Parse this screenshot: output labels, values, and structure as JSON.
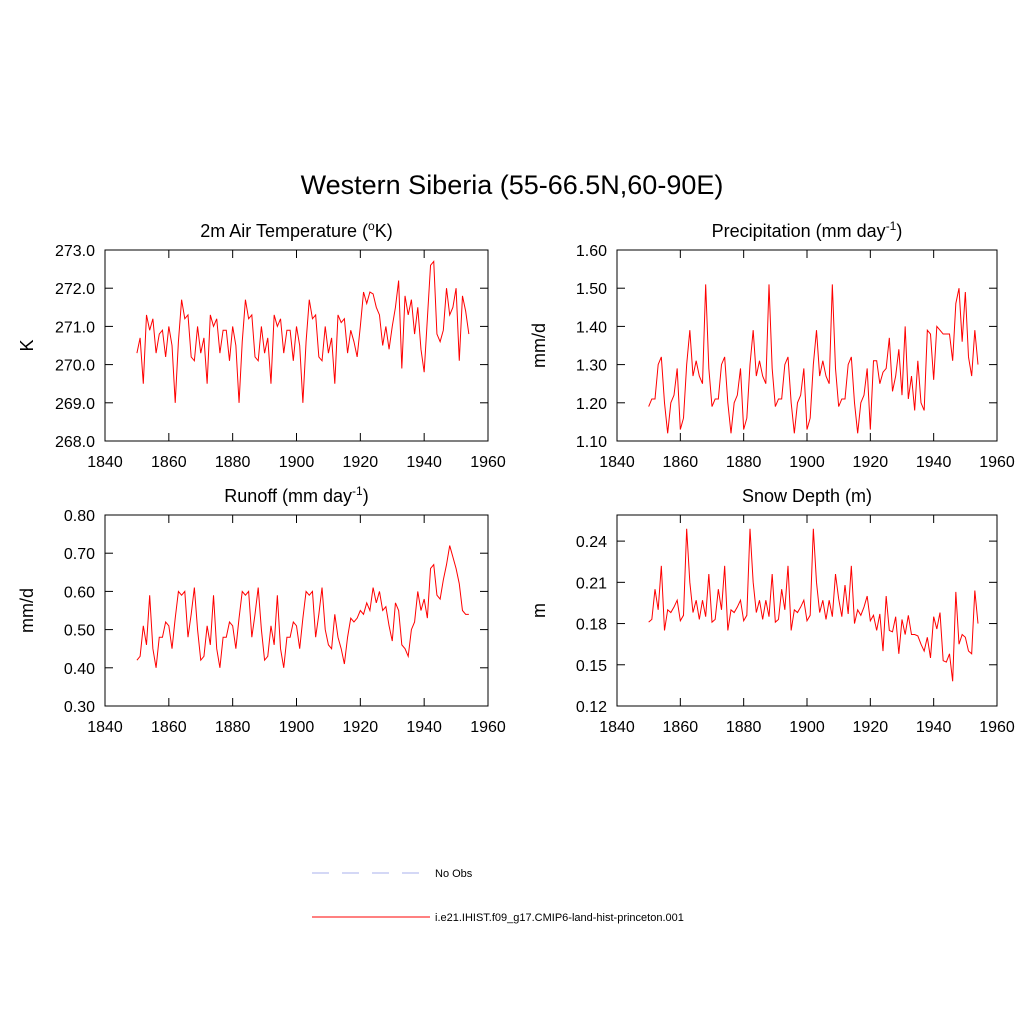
{
  "title": "Western Siberia (55-66.5N,60-90E)",
  "legend": [
    {
      "name": "No Obs",
      "color": "#aab0ee",
      "dash": true
    },
    {
      "name": "i.e21.IHIST.f09_g17.CMIP6-land-hist-princeton.001",
      "color": "#ff0000",
      "dash": false
    }
  ],
  "chart_data": [
    {
      "type": "line",
      "title": [
        {
          "text": "2m Air Temperature ("
        },
        {
          "text": "o",
          "sup": true
        },
        {
          "text": "K)"
        }
      ],
      "y_label": "K",
      "color": "#ff0000",
      "xlim": [
        1840,
        1960
      ],
      "xticks": [
        1840,
        1860,
        1880,
        1900,
        1920,
        1940,
        1960
      ],
      "ylim": [
        268,
        273
      ],
      "yticks": [
        {
          "value": 268,
          "label": "268.0"
        },
        {
          "value": 269,
          "label": "269.0"
        },
        {
          "value": 270,
          "label": "270.0"
        },
        {
          "value": 271,
          "label": "271.0"
        },
        {
          "value": 272,
          "label": "272.0"
        },
        {
          "value": 273,
          "label": "273.0"
        }
      ],
      "x": [
        1850,
        1851,
        1852,
        1853,
        1854,
        1855,
        1856,
        1857,
        1858,
        1859,
        1860,
        1861,
        1862,
        1863,
        1864,
        1865,
        1866,
        1867,
        1868,
        1869,
        1870,
        1871,
        1872,
        1873,
        1874,
        1875,
        1876,
        1877,
        1878,
        1879,
        1880,
        1881,
        1882,
        1883,
        1884,
        1885,
        1886,
        1887,
        1888,
        1889,
        1890,
        1891,
        1892,
        1893,
        1894,
        1895,
        1896,
        1897,
        1898,
        1899,
        1900,
        1901,
        1902,
        1903,
        1904,
        1905,
        1906,
        1907,
        1908,
        1909,
        1910,
        1911,
        1912,
        1913,
        1914,
        1915,
        1916,
        1917,
        1918,
        1919,
        1920,
        1921,
        1922,
        1923,
        1924,
        1925,
        1926,
        1927,
        1928,
        1929,
        1930,
        1931,
        1932,
        1933,
        1934,
        1935,
        1936,
        1937,
        1938,
        1939,
        1940,
        1941,
        1942,
        1943,
        1944,
        1945,
        1946,
        1947,
        1948,
        1949,
        1950,
        1951,
        1952,
        1953,
        1954
      ],
      "values": [
        270.3,
        270.7,
        269.5,
        271.3,
        270.9,
        271.2,
        270.3,
        270.8,
        270.9,
        270.2,
        271.0,
        270.5,
        269.0,
        270.6,
        271.7,
        271.2,
        271.3,
        270.2,
        270.1,
        271.0,
        270.3,
        270.7,
        269.5,
        271.3,
        271.0,
        271.2,
        270.3,
        270.9,
        270.9,
        270.1,
        271.0,
        270.5,
        269.0,
        270.6,
        271.7,
        271.2,
        271.3,
        270.2,
        270.1,
        271.0,
        270.3,
        270.7,
        269.5,
        271.3,
        271.0,
        271.2,
        270.3,
        270.9,
        270.9,
        270.1,
        271.0,
        270.5,
        269.0,
        270.6,
        271.7,
        271.2,
        271.3,
        270.2,
        270.1,
        271.0,
        270.3,
        270.7,
        269.5,
        271.3,
        271.1,
        271.2,
        270.3,
        270.9,
        270.6,
        270.2,
        271.0,
        271.9,
        271.6,
        271.9,
        271.85,
        271.5,
        271.3,
        270.5,
        271.0,
        270.4,
        271.0,
        271.5,
        272.2,
        269.9,
        271.8,
        271.3,
        271.7,
        270.8,
        271.5,
        270.4,
        269.8,
        271.2,
        272.6,
        272.7,
        270.8,
        270.6,
        270.9,
        272.0,
        271.3,
        271.5,
        272.0,
        270.1,
        271.8,
        271.4,
        270.8
      ]
    },
    {
      "type": "line",
      "title": [
        {
          "text": "Precipitation (mm day"
        },
        {
          "text": "-1",
          "sup": true
        },
        {
          "text": ")"
        }
      ],
      "y_label": "mm/d",
      "color": "#ff0000",
      "xlim": [
        1840,
        1960
      ],
      "xticks": [
        1840,
        1860,
        1880,
        1900,
        1920,
        1940,
        1960
      ],
      "ylim": [
        1.1,
        1.6
      ],
      "yticks": [
        {
          "value": 1.1,
          "label": "1.10"
        },
        {
          "value": 1.2,
          "label": "1.20"
        },
        {
          "value": 1.3,
          "label": "1.30"
        },
        {
          "value": 1.4,
          "label": "1.40"
        },
        {
          "value": 1.5,
          "label": "1.50"
        },
        {
          "value": 1.6,
          "label": "1.60"
        }
      ],
      "x": [
        1850,
        1851,
        1852,
        1853,
        1854,
        1855,
        1856,
        1857,
        1858,
        1859,
        1860,
        1861,
        1862,
        1863,
        1864,
        1865,
        1866,
        1867,
        1868,
        1869,
        1870,
        1871,
        1872,
        1873,
        1874,
        1875,
        1876,
        1877,
        1878,
        1879,
        1880,
        1881,
        1882,
        1883,
        1884,
        1885,
        1886,
        1887,
        1888,
        1889,
        1890,
        1891,
        1892,
        1893,
        1894,
        1895,
        1896,
        1897,
        1898,
        1899,
        1900,
        1901,
        1902,
        1903,
        1904,
        1905,
        1906,
        1907,
        1908,
        1909,
        1910,
        1911,
        1912,
        1913,
        1914,
        1915,
        1916,
        1917,
        1918,
        1919,
        1920,
        1921,
        1922,
        1923,
        1924,
        1925,
        1926,
        1927,
        1928,
        1929,
        1930,
        1931,
        1932,
        1933,
        1934,
        1935,
        1936,
        1937,
        1938,
        1939,
        1940,
        1941,
        1942,
        1943,
        1944,
        1945,
        1946,
        1947,
        1948,
        1949,
        1950,
        1951,
        1952,
        1953,
        1954
      ],
      "values": [
        1.19,
        1.21,
        1.21,
        1.3,
        1.32,
        1.2,
        1.12,
        1.2,
        1.22,
        1.29,
        1.13,
        1.16,
        1.3,
        1.39,
        1.27,
        1.31,
        1.27,
        1.25,
        1.51,
        1.29,
        1.19,
        1.21,
        1.21,
        1.3,
        1.32,
        1.2,
        1.12,
        1.2,
        1.22,
        1.29,
        1.13,
        1.16,
        1.3,
        1.39,
        1.27,
        1.31,
        1.27,
        1.25,
        1.51,
        1.29,
        1.19,
        1.21,
        1.21,
        1.3,
        1.32,
        1.2,
        1.12,
        1.2,
        1.22,
        1.29,
        1.13,
        1.16,
        1.3,
        1.39,
        1.27,
        1.31,
        1.27,
        1.25,
        1.51,
        1.29,
        1.19,
        1.21,
        1.21,
        1.3,
        1.32,
        1.2,
        1.12,
        1.2,
        1.22,
        1.29,
        1.13,
        1.31,
        1.31,
        1.25,
        1.28,
        1.29,
        1.37,
        1.23,
        1.27,
        1.34,
        1.22,
        1.4,
        1.21,
        1.27,
        1.18,
        1.31,
        1.2,
        1.18,
        1.39,
        1.38,
        1.26,
        1.4,
        1.39,
        1.38,
        1.38,
        1.38,
        1.31,
        1.46,
        1.5,
        1.36,
        1.49,
        1.32,
        1.27,
        1.39,
        1.3
      ]
    },
    {
      "type": "line",
      "title": [
        {
          "text": "Runoff (mm day"
        },
        {
          "text": "-1",
          "sup": true
        },
        {
          "text": ")"
        }
      ],
      "y_label": "mm/d",
      "color": "#ff0000",
      "xlim": [
        1840,
        1960
      ],
      "xticks": [
        1840,
        1860,
        1880,
        1900,
        1920,
        1940,
        1960
      ],
      "ylim": [
        0.3,
        0.8
      ],
      "yticks": [
        {
          "value": 0.3,
          "label": "0.30"
        },
        {
          "value": 0.4,
          "label": "0.40"
        },
        {
          "value": 0.5,
          "label": "0.50"
        },
        {
          "value": 0.6,
          "label": "0.60"
        },
        {
          "value": 0.7,
          "label": "0.70"
        },
        {
          "value": 0.8,
          "label": "0.80"
        }
      ],
      "x": [
        1850,
        1851,
        1852,
        1853,
        1854,
        1855,
        1856,
        1857,
        1858,
        1859,
        1860,
        1861,
        1862,
        1863,
        1864,
        1865,
        1866,
        1867,
        1868,
        1869,
        1870,
        1871,
        1872,
        1873,
        1874,
        1875,
        1876,
        1877,
        1878,
        1879,
        1880,
        1881,
        1882,
        1883,
        1884,
        1885,
        1886,
        1887,
        1888,
        1889,
        1890,
        1891,
        1892,
        1893,
        1894,
        1895,
        1896,
        1897,
        1898,
        1899,
        1900,
        1901,
        1902,
        1903,
        1904,
        1905,
        1906,
        1907,
        1908,
        1909,
        1910,
        1911,
        1912,
        1913,
        1914,
        1915,
        1916,
        1917,
        1918,
        1919,
        1920,
        1921,
        1922,
        1923,
        1924,
        1925,
        1926,
        1927,
        1928,
        1929,
        1930,
        1931,
        1932,
        1933,
        1934,
        1935,
        1936,
        1937,
        1938,
        1939,
        1940,
        1941,
        1942,
        1943,
        1944,
        1945,
        1946,
        1947,
        1948,
        1949,
        1950,
        1951,
        1952,
        1953,
        1954
      ],
      "values": [
        0.42,
        0.43,
        0.51,
        0.46,
        0.59,
        0.45,
        0.4,
        0.48,
        0.48,
        0.52,
        0.51,
        0.45,
        0.53,
        0.6,
        0.59,
        0.6,
        0.48,
        0.54,
        0.61,
        0.5,
        0.42,
        0.43,
        0.51,
        0.46,
        0.59,
        0.45,
        0.4,
        0.48,
        0.48,
        0.52,
        0.51,
        0.45,
        0.53,
        0.6,
        0.59,
        0.6,
        0.48,
        0.54,
        0.61,
        0.5,
        0.42,
        0.43,
        0.51,
        0.46,
        0.59,
        0.45,
        0.4,
        0.48,
        0.48,
        0.52,
        0.51,
        0.45,
        0.53,
        0.6,
        0.59,
        0.6,
        0.48,
        0.54,
        0.61,
        0.5,
        0.46,
        0.45,
        0.54,
        0.48,
        0.45,
        0.41,
        0.48,
        0.53,
        0.52,
        0.53,
        0.55,
        0.54,
        0.57,
        0.55,
        0.61,
        0.57,
        0.6,
        0.55,
        0.56,
        0.51,
        0.47,
        0.57,
        0.55,
        0.46,
        0.45,
        0.43,
        0.5,
        0.52,
        0.6,
        0.55,
        0.58,
        0.53,
        0.66,
        0.67,
        0.59,
        0.58,
        0.63,
        0.67,
        0.72,
        0.69,
        0.66,
        0.62,
        0.55,
        0.54,
        0.54
      ]
    },
    {
      "type": "line",
      "title": [
        {
          "text": "Snow Depth (m)"
        }
      ],
      "y_label": "m",
      "color": "#ff0000",
      "xlim": [
        1840,
        1960
      ],
      "xticks": [
        1840,
        1860,
        1880,
        1900,
        1920,
        1940,
        1960
      ],
      "ylim": [
        0.12,
        0.259
      ],
      "yticks": [
        0.12,
        0.15,
        0.18,
        0.21,
        0.24
      ],
      "x": [
        1850,
        1851,
        1852,
        1853,
        1854,
        1855,
        1856,
        1857,
        1858,
        1859,
        1860,
        1861,
        1862,
        1863,
        1864,
        1865,
        1866,
        1867,
        1868,
        1869,
        1870,
        1871,
        1872,
        1873,
        1874,
        1875,
        1876,
        1877,
        1878,
        1879,
        1880,
        1881,
        1882,
        1883,
        1884,
        1885,
        1886,
        1887,
        1888,
        1889,
        1890,
        1891,
        1892,
        1893,
        1894,
        1895,
        1896,
        1897,
        1898,
        1899,
        1900,
        1901,
        1902,
        1903,
        1904,
        1905,
        1906,
        1907,
        1908,
        1909,
        1910,
        1911,
        1912,
        1913,
        1914,
        1915,
        1916,
        1917,
        1918,
        1919,
        1920,
        1921,
        1922,
        1923,
        1924,
        1925,
        1926,
        1927,
        1928,
        1929,
        1930,
        1931,
        1932,
        1933,
        1934,
        1935,
        1936,
        1937,
        1938,
        1939,
        1940,
        1941,
        1942,
        1943,
        1944,
        1945,
        1946,
        1947,
        1948,
        1949,
        1950,
        1951,
        1952,
        1953,
        1954
      ],
      "values": [
        0.181,
        0.183,
        0.205,
        0.19,
        0.222,
        0.175,
        0.19,
        0.188,
        0.192,
        0.197,
        0.182,
        0.186,
        0.249,
        0.21,
        0.188,
        0.197,
        0.183,
        0.197,
        0.185,
        0.216,
        0.181,
        0.183,
        0.205,
        0.19,
        0.222,
        0.175,
        0.19,
        0.188,
        0.192,
        0.197,
        0.182,
        0.186,
        0.249,
        0.21,
        0.188,
        0.197,
        0.183,
        0.197,
        0.185,
        0.216,
        0.181,
        0.183,
        0.205,
        0.19,
        0.222,
        0.175,
        0.19,
        0.188,
        0.192,
        0.197,
        0.182,
        0.186,
        0.249,
        0.21,
        0.188,
        0.197,
        0.183,
        0.197,
        0.185,
        0.216,
        0.198,
        0.185,
        0.208,
        0.187,
        0.222,
        0.18,
        0.19,
        0.186,
        0.192,
        0.2,
        0.182,
        0.186,
        0.175,
        0.187,
        0.16,
        0.2,
        0.175,
        0.174,
        0.185,
        0.158,
        0.183,
        0.172,
        0.186,
        0.172,
        0.172,
        0.171,
        0.165,
        0.16,
        0.17,
        0.155,
        0.185,
        0.176,
        0.188,
        0.153,
        0.152,
        0.158,
        0.138,
        0.203,
        0.165,
        0.172,
        0.17,
        0.16,
        0.158,
        0.204,
        0.18
      ]
    }
  ]
}
